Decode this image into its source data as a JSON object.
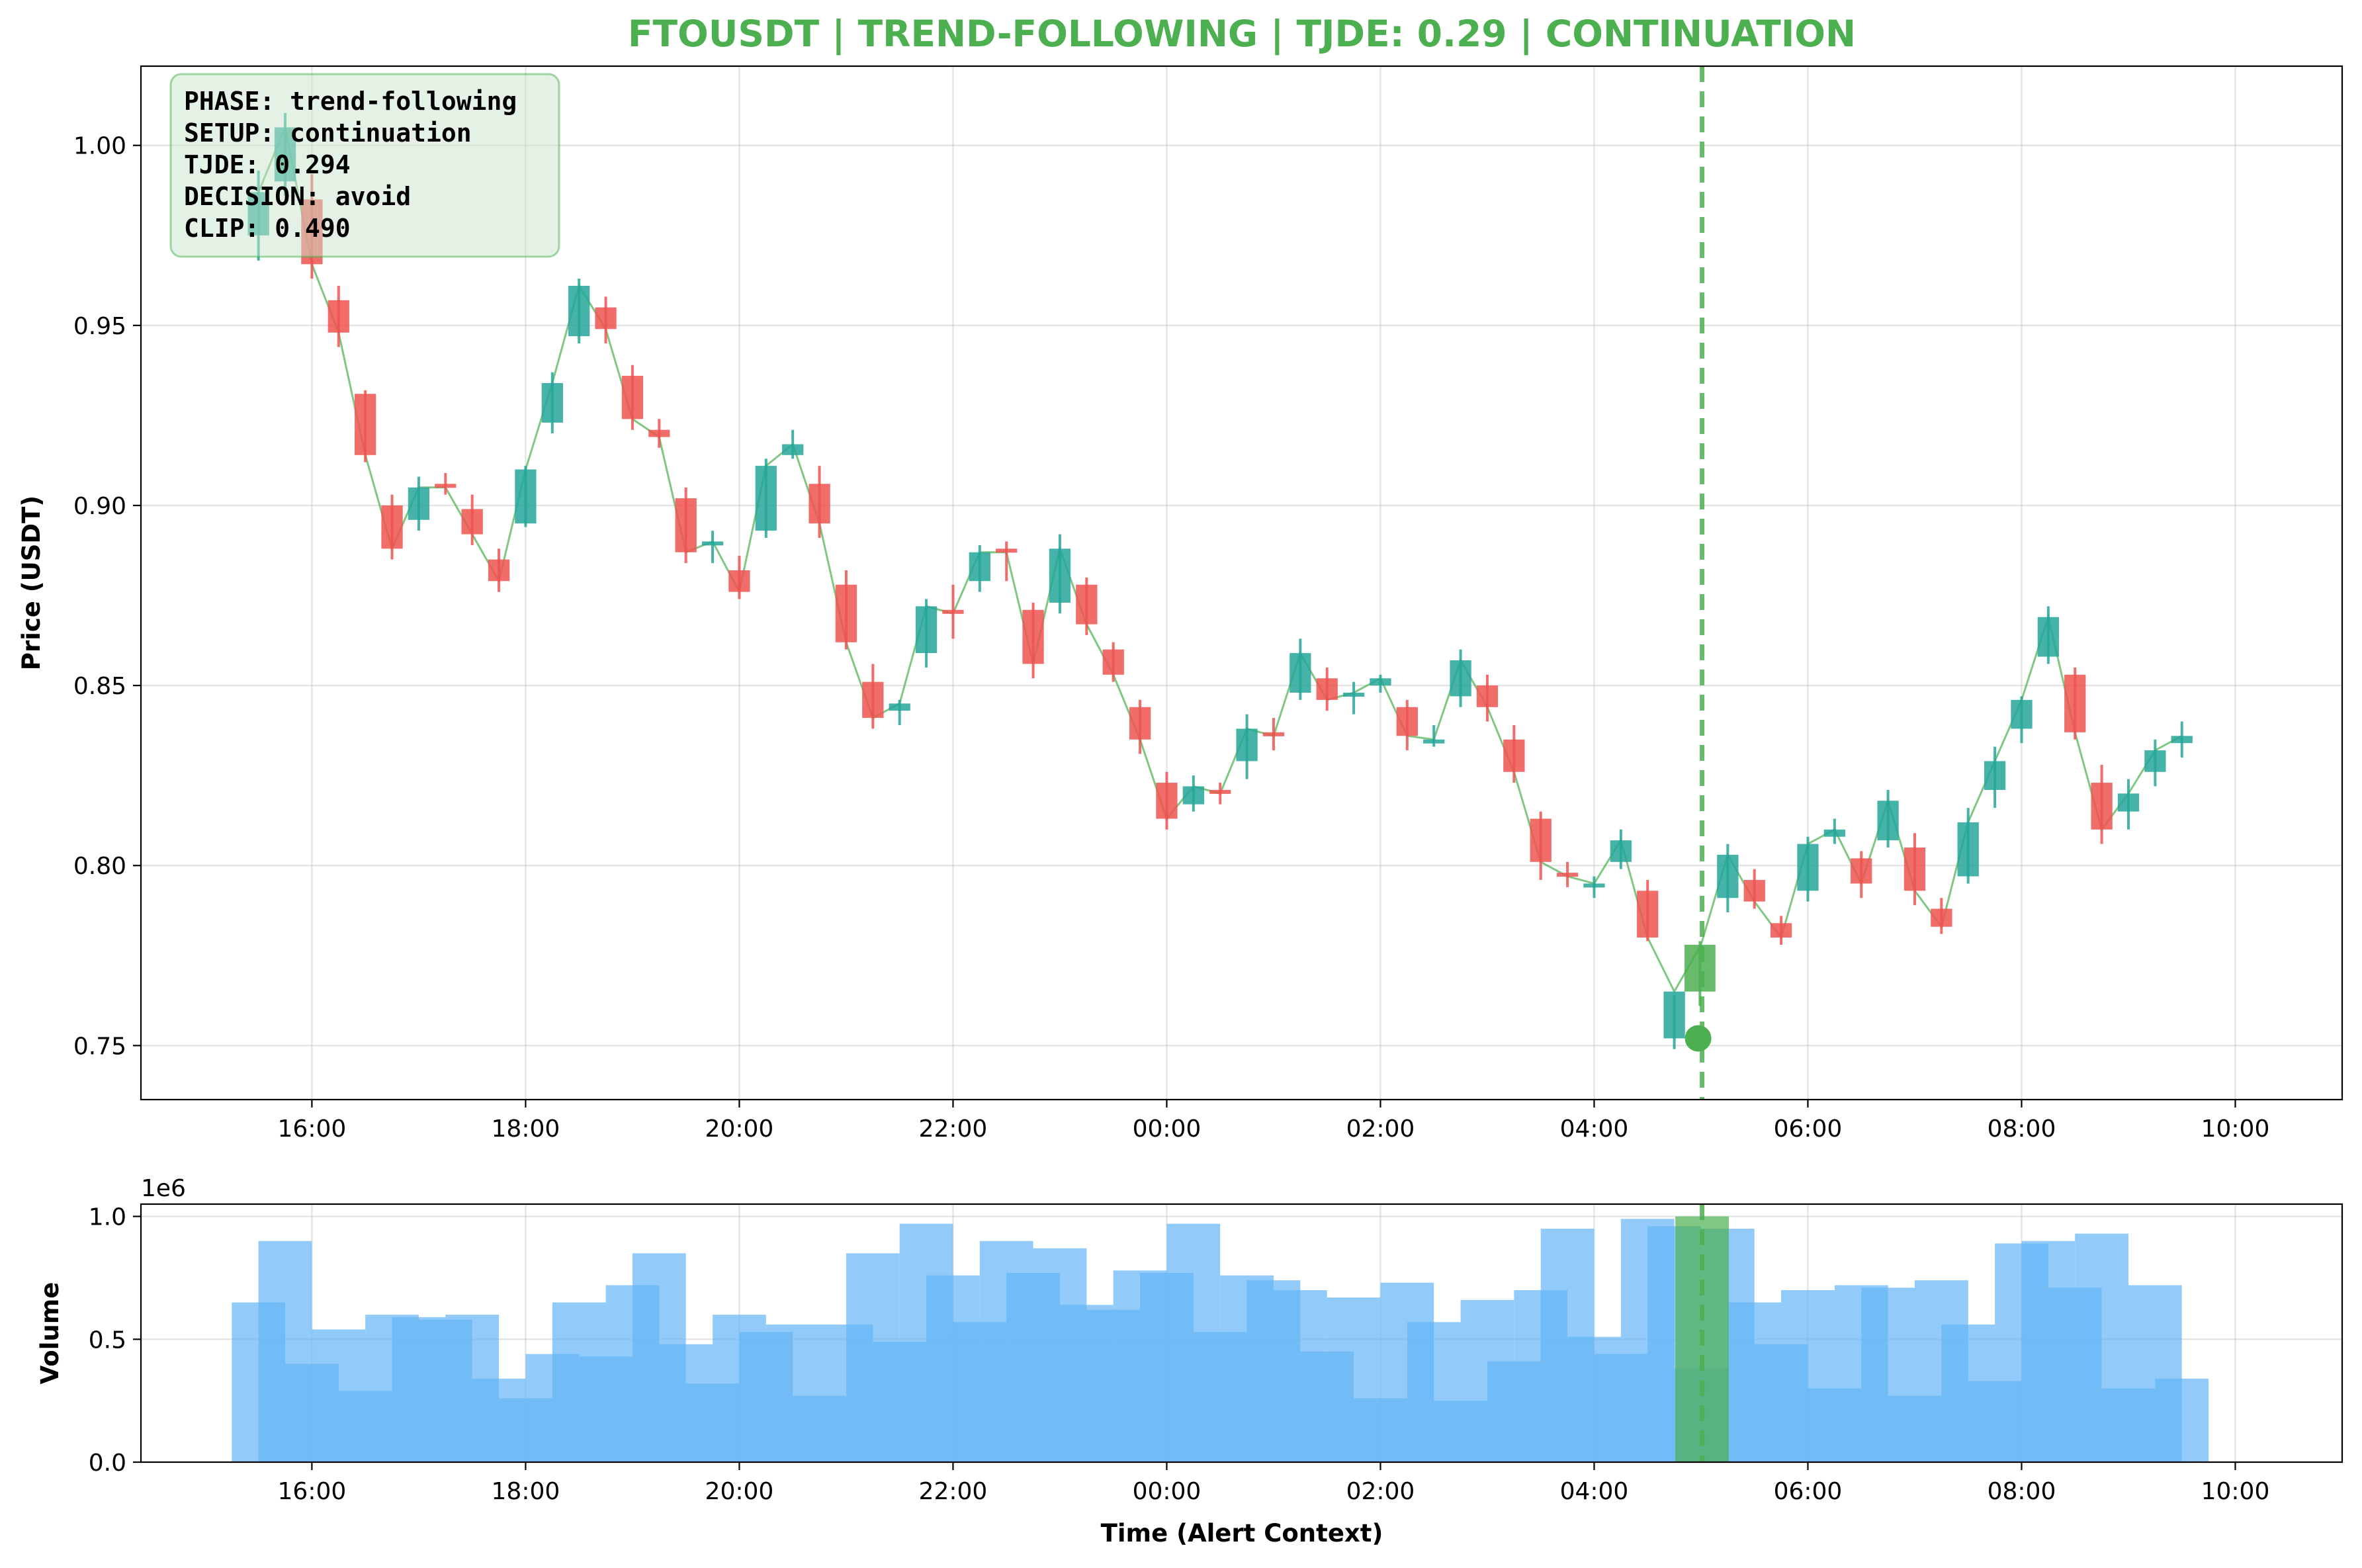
{
  "colors": {
    "up": "#26a69a",
    "down": "#ef5350",
    "alert": "#4caf50",
    "volume": "#64b5f6",
    "close_line": "#4caf50",
    "title": "#4caf50",
    "infobox_bg": "#c8e6c9"
  },
  "chart_data": [
    {
      "type": "candlestick",
      "title": "FTOUSDT | TREND-FOLLOWING | TJDE: 0.29 | CONTINUATION",
      "ylabel": "Price (USDT)",
      "xlabel": "",
      "ylim": [
        0.735,
        1.022
      ],
      "yticks": [
        0.75,
        0.8,
        0.85,
        0.9,
        0.95,
        1.0
      ],
      "ytick_labels": [
        "0.75",
        "0.80",
        "0.85",
        "0.90",
        "0.95",
        "1.00"
      ],
      "xlim_hours": [
        14.4,
        35.0
      ],
      "xticks": [
        16,
        18,
        20,
        22,
        24,
        26,
        28,
        30,
        32,
        34
      ],
      "xtick_labels": [
        "16:00",
        "18:00",
        "20:00",
        "22:00",
        "00:00",
        "02:00",
        "04:00",
        "06:00",
        "08:00",
        "10:00"
      ],
      "grid": true,
      "interval_minutes": 15,
      "candles": [
        {
          "t": "15:30",
          "o": 0.975,
          "h": 0.993,
          "l": 0.968,
          "c": 0.987
        },
        {
          "t": "15:45",
          "o": 0.99,
          "h": 1.009,
          "l": 0.986,
          "c": 1.005
        },
        {
          "t": "16:00",
          "o": 0.985,
          "h": 0.992,
          "l": 0.963,
          "c": 0.967
        },
        {
          "t": "16:15",
          "o": 0.957,
          "h": 0.961,
          "l": 0.944,
          "c": 0.948
        },
        {
          "t": "16:30",
          "o": 0.931,
          "h": 0.932,
          "l": 0.912,
          "c": 0.914
        },
        {
          "t": "16:45",
          "o": 0.9,
          "h": 0.903,
          "l": 0.885,
          "c": 0.888
        },
        {
          "t": "17:00",
          "o": 0.896,
          "h": 0.908,
          "l": 0.893,
          "c": 0.905
        },
        {
          "t": "17:15",
          "o": 0.906,
          "h": 0.909,
          "l": 0.903,
          "c": 0.905
        },
        {
          "t": "17:30",
          "o": 0.899,
          "h": 0.903,
          "l": 0.889,
          "c": 0.892
        },
        {
          "t": "17:45",
          "o": 0.885,
          "h": 0.888,
          "l": 0.876,
          "c": 0.879
        },
        {
          "t": "18:00",
          "o": 0.895,
          "h": 0.911,
          "l": 0.894,
          "c": 0.91
        },
        {
          "t": "18:15",
          "o": 0.923,
          "h": 0.937,
          "l": 0.92,
          "c": 0.934
        },
        {
          "t": "18:30",
          "o": 0.947,
          "h": 0.963,
          "l": 0.945,
          "c": 0.961
        },
        {
          "t": "18:45",
          "o": 0.955,
          "h": 0.958,
          "l": 0.945,
          "c": 0.949
        },
        {
          "t": "19:00",
          "o": 0.936,
          "h": 0.939,
          "l": 0.921,
          "c": 0.924
        },
        {
          "t": "19:15",
          "o": 0.921,
          "h": 0.924,
          "l": 0.916,
          "c": 0.919
        },
        {
          "t": "19:30",
          "o": 0.902,
          "h": 0.905,
          "l": 0.884,
          "c": 0.887
        },
        {
          "t": "19:45",
          "o": 0.889,
          "h": 0.893,
          "l": 0.884,
          "c": 0.89
        },
        {
          "t": "20:00",
          "o": 0.882,
          "h": 0.886,
          "l": 0.874,
          "c": 0.876
        },
        {
          "t": "20:15",
          "o": 0.893,
          "h": 0.913,
          "l": 0.891,
          "c": 0.911
        },
        {
          "t": "20:30",
          "o": 0.914,
          "h": 0.921,
          "l": 0.913,
          "c": 0.917
        },
        {
          "t": "20:45",
          "o": 0.906,
          "h": 0.911,
          "l": 0.891,
          "c": 0.895
        },
        {
          "t": "21:00",
          "o": 0.878,
          "h": 0.882,
          "l": 0.86,
          "c": 0.862
        },
        {
          "t": "21:15",
          "o": 0.851,
          "h": 0.856,
          "l": 0.838,
          "c": 0.841
        },
        {
          "t": "21:30",
          "o": 0.843,
          "h": 0.846,
          "l": 0.839,
          "c": 0.845
        },
        {
          "t": "21:45",
          "o": 0.859,
          "h": 0.874,
          "l": 0.855,
          "c": 0.872
        },
        {
          "t": "22:00",
          "o": 0.871,
          "h": 0.878,
          "l": 0.863,
          "c": 0.87
        },
        {
          "t": "22:15",
          "o": 0.879,
          "h": 0.889,
          "l": 0.876,
          "c": 0.887
        },
        {
          "t": "22:30",
          "o": 0.888,
          "h": 0.89,
          "l": 0.879,
          "c": 0.887
        },
        {
          "t": "22:45",
          "o": 0.871,
          "h": 0.873,
          "l": 0.852,
          "c": 0.856
        },
        {
          "t": "23:00",
          "o": 0.873,
          "h": 0.892,
          "l": 0.87,
          "c": 0.888
        },
        {
          "t": "23:15",
          "o": 0.878,
          "h": 0.88,
          "l": 0.864,
          "c": 0.867
        },
        {
          "t": "23:30",
          "o": 0.86,
          "h": 0.862,
          "l": 0.851,
          "c": 0.853
        },
        {
          "t": "23:45",
          "o": 0.844,
          "h": 0.846,
          "l": 0.831,
          "c": 0.835
        },
        {
          "t": "00:00",
          "o": 0.823,
          "h": 0.826,
          "l": 0.81,
          "c": 0.813
        },
        {
          "t": "00:15",
          "o": 0.817,
          "h": 0.825,
          "l": 0.815,
          "c": 0.822
        },
        {
          "t": "00:30",
          "o": 0.821,
          "h": 0.823,
          "l": 0.817,
          "c": 0.82
        },
        {
          "t": "00:45",
          "o": 0.829,
          "h": 0.842,
          "l": 0.824,
          "c": 0.838
        },
        {
          "t": "01:00",
          "o": 0.837,
          "h": 0.841,
          "l": 0.832,
          "c": 0.836
        },
        {
          "t": "01:15",
          "o": 0.848,
          "h": 0.863,
          "l": 0.846,
          "c": 0.859
        },
        {
          "t": "01:30",
          "o": 0.852,
          "h": 0.855,
          "l": 0.843,
          "c": 0.846
        },
        {
          "t": "01:45",
          "o": 0.847,
          "h": 0.851,
          "l": 0.842,
          "c": 0.848
        },
        {
          "t": "02:00",
          "o": 0.85,
          "h": 0.853,
          "l": 0.848,
          "c": 0.852
        },
        {
          "t": "02:15",
          "o": 0.844,
          "h": 0.846,
          "l": 0.832,
          "c": 0.836
        },
        {
          "t": "02:30",
          "o": 0.835,
          "h": 0.839,
          "l": 0.833,
          "c": 0.835
        },
        {
          "t": "02:45",
          "o": 0.847,
          "h": 0.86,
          "l": 0.844,
          "c": 0.857
        },
        {
          "t": "03:00",
          "o": 0.85,
          "h": 0.853,
          "l": 0.84,
          "c": 0.844
        },
        {
          "t": "03:15",
          "o": 0.835,
          "h": 0.839,
          "l": 0.823,
          "c": 0.826
        },
        {
          "t": "03:30",
          "o": 0.813,
          "h": 0.815,
          "l": 0.796,
          "c": 0.801
        },
        {
          "t": "03:45",
          "o": 0.798,
          "h": 0.801,
          "l": 0.794,
          "c": 0.797
        },
        {
          "t": "04:00",
          "o": 0.794,
          "h": 0.797,
          "l": 0.791,
          "c": 0.795
        },
        {
          "t": "04:15",
          "o": 0.801,
          "h": 0.81,
          "l": 0.799,
          "c": 0.807
        },
        {
          "t": "04:30",
          "o": 0.793,
          "h": 0.796,
          "l": 0.779,
          "c": 0.78
        },
        {
          "t": "04:45",
          "o": 0.752,
          "h": 0.764,
          "l": 0.749,
          "c": 0.765
        },
        {
          "t": "05:00",
          "o": 0.765,
          "h": 0.779,
          "l": 0.761,
          "c": 0.778
        },
        {
          "t": "05:15",
          "o": 0.791,
          "h": 0.806,
          "l": 0.787,
          "c": 0.803
        },
        {
          "t": "05:30",
          "o": 0.796,
          "h": 0.799,
          "l": 0.788,
          "c": 0.79
        },
        {
          "t": "05:45",
          "o": 0.784,
          "h": 0.786,
          "l": 0.778,
          "c": 0.78
        },
        {
          "t": "06:00",
          "o": 0.793,
          "h": 0.808,
          "l": 0.79,
          "c": 0.806
        },
        {
          "t": "06:15",
          "o": 0.808,
          "h": 0.813,
          "l": 0.806,
          "c": 0.81
        },
        {
          "t": "06:30",
          "o": 0.802,
          "h": 0.804,
          "l": 0.791,
          "c": 0.795
        },
        {
          "t": "06:45",
          "o": 0.807,
          "h": 0.821,
          "l": 0.805,
          "c": 0.818
        },
        {
          "t": "07:00",
          "o": 0.805,
          "h": 0.809,
          "l": 0.789,
          "c": 0.793
        },
        {
          "t": "07:15",
          "o": 0.788,
          "h": 0.791,
          "l": 0.781,
          "c": 0.783
        },
        {
          "t": "07:30",
          "o": 0.797,
          "h": 0.816,
          "l": 0.795,
          "c": 0.812
        },
        {
          "t": "07:45",
          "o": 0.821,
          "h": 0.833,
          "l": 0.816,
          "c": 0.829
        },
        {
          "t": "08:00",
          "o": 0.838,
          "h": 0.847,
          "l": 0.834,
          "c": 0.846
        },
        {
          "t": "08:15",
          "o": 0.858,
          "h": 0.872,
          "l": 0.856,
          "c": 0.869
        },
        {
          "t": "08:30",
          "o": 0.853,
          "h": 0.855,
          "l": 0.835,
          "c": 0.837
        },
        {
          "t": "08:45",
          "o": 0.823,
          "h": 0.828,
          "l": 0.806,
          "c": 0.81
        },
        {
          "t": "09:00",
          "o": 0.815,
          "h": 0.824,
          "l": 0.81,
          "c": 0.82
        },
        {
          "t": "09:15",
          "o": 0.826,
          "h": 0.835,
          "l": 0.822,
          "c": 0.832
        },
        {
          "t": "09:30",
          "o": 0.834,
          "h": 0.84,
          "l": 0.83,
          "c": 0.836
        }
      ],
      "alert": {
        "time": "05:00",
        "price": 0.752
      },
      "infobox": [
        "PHASE: trend-following",
        "SETUP: continuation",
        "TJDE: 0.294",
        "DECISION: avoid",
        "CLIP: 0.490"
      ]
    },
    {
      "type": "bar",
      "ylabel": "Volume",
      "xlabel": "Time (Alert Context)",
      "scale_label": "1e6",
      "ylim": [
        0,
        1.05
      ],
      "yticks": [
        0.0,
        0.5,
        1.0
      ],
      "ytick_labels": [
        "0.0",
        "0.5",
        "1.0"
      ],
      "xticks": [
        16,
        18,
        20,
        22,
        24,
        26,
        28,
        30,
        32,
        34
      ],
      "xtick_labels": [
        "16:00",
        "18:00",
        "20:00",
        "22:00",
        "00:00",
        "02:00",
        "04:00",
        "06:00",
        "08:00",
        "10:00"
      ],
      "grid": true,
      "values_millions": [
        0.65,
        0.9,
        0.4,
        0.54,
        0.29,
        0.6,
        0.59,
        0.58,
        0.6,
        0.34,
        0.26,
        0.44,
        0.65,
        0.43,
        0.72,
        0.85,
        0.48,
        0.32,
        0.6,
        0.53,
        0.56,
        0.27,
        0.56,
        0.85,
        0.49,
        0.97,
        0.76,
        0.57,
        0.9,
        0.77,
        0.87,
        0.64,
        0.62,
        0.78,
        0.77,
        0.97,
        0.53,
        0.76,
        0.74,
        0.7,
        0.45,
        0.67,
        0.26,
        0.73,
        0.57,
        0.25,
        0.66,
        0.41,
        0.7,
        0.95,
        0.51,
        0.44,
        0.99,
        0.96,
        0.38,
        0.95,
        0.65,
        0.48,
        0.7,
        0.3,
        0.72,
        0.71,
        0.27,
        0.74,
        0.56,
        0.33,
        0.89,
        0.9,
        0.71,
        0.93,
        0.3,
        0.72,
        0.34
      ]
    }
  ]
}
